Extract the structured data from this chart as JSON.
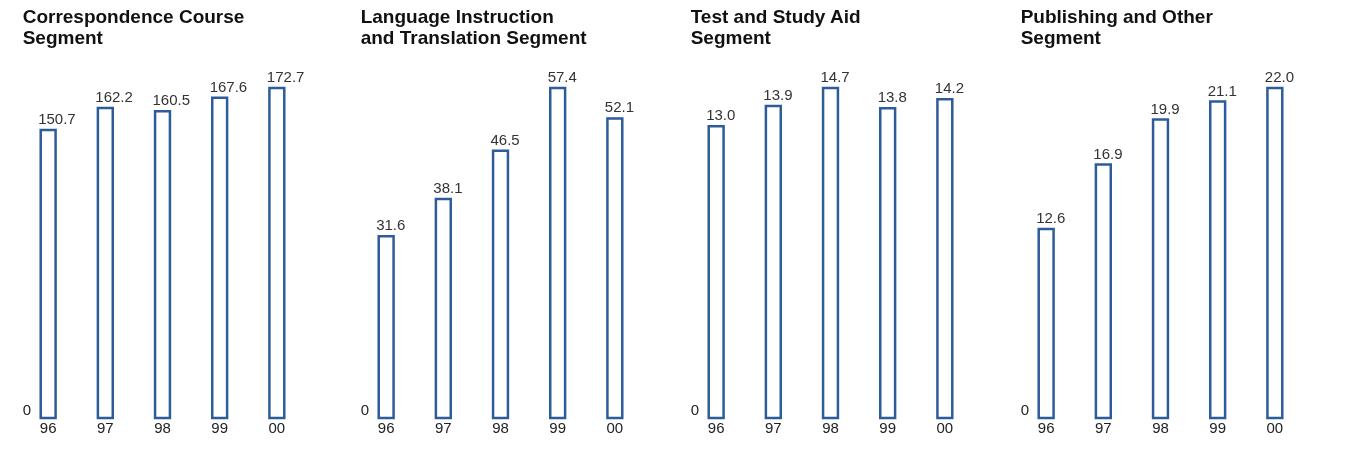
{
  "chart_data": [
    {
      "type": "bar",
      "title": "Correspondence Course Segment",
      "categories": [
        "96",
        "97",
        "98",
        "99",
        "00"
      ],
      "values": [
        150.7,
        162.2,
        160.5,
        167.6,
        172.7
      ],
      "value_labels": [
        "150.7",
        "162.2",
        "160.5",
        "167.6",
        "172.7"
      ],
      "color": "#2e5b9a",
      "annotations": [
        "0"
      ],
      "grid": false
    },
    {
      "type": "bar",
      "title": "Language Instruction and Translation Segment",
      "categories": [
        "96",
        "97",
        "98",
        "99",
        "00"
      ],
      "values": [
        31.6,
        38.1,
        46.5,
        57.4,
        52.1
      ],
      "value_labels": [
        "31.6",
        "38.1",
        "46.5",
        "57.4",
        "52.1"
      ],
      "color": "#2e5b9a",
      "annotations": [
        "0"
      ],
      "grid": false
    },
    {
      "type": "bar",
      "title": "Test and Study Aid Segment",
      "categories": [
        "96",
        "97",
        "98",
        "99",
        "00"
      ],
      "values": [
        13.0,
        13.9,
        14.7,
        13.8,
        14.2
      ],
      "value_labels": [
        "13.0",
        "13.9",
        "14.7",
        "13.8",
        "14.2"
      ],
      "color": "#2e5b9a",
      "annotations": [
        "0"
      ],
      "grid": false
    },
    {
      "type": "bar",
      "title": "Publishing and Other Segment",
      "categories": [
        "96",
        "97",
        "98",
        "99",
        "00"
      ],
      "values": [
        12.6,
        16.9,
        19.9,
        21.1,
        22.0
      ],
      "value_labels": [
        "12.6",
        "16.9",
        "19.9",
        "21.1",
        "22.0"
      ],
      "color": "#2e5b9a",
      "annotations": [
        "0"
      ],
      "grid": false
    }
  ]
}
